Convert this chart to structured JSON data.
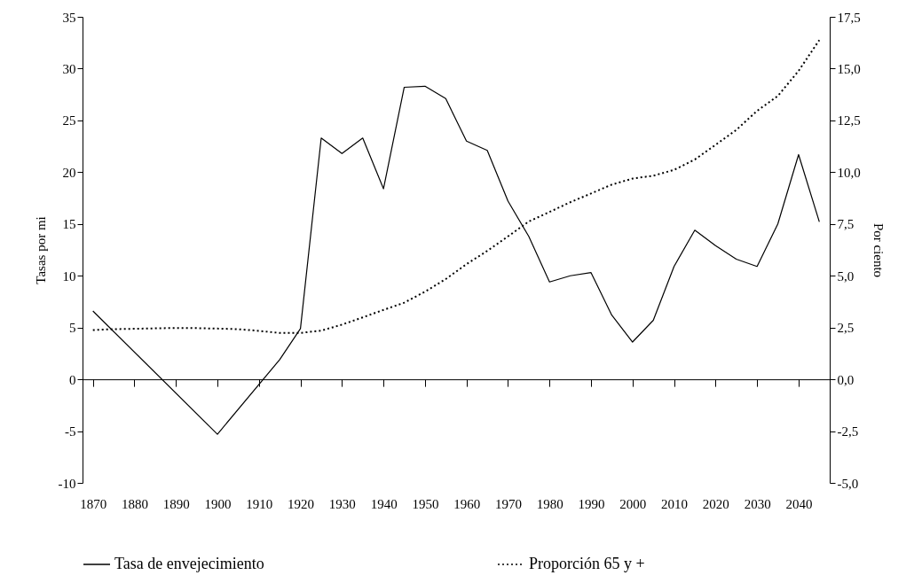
{
  "chart_data": {
    "type": "line",
    "ylabel": "Tasas por mi",
    "y2label": "Por ciento",
    "x": [
      1870,
      1875,
      1880,
      1885,
      1890,
      1895,
      1900,
      1905,
      1910,
      1915,
      1920,
      1925,
      1930,
      1935,
      1940,
      1945,
      1950,
      1955,
      1960,
      1965,
      1970,
      1975,
      1980,
      1985,
      1990,
      1995,
      2000,
      2005,
      2010,
      2015,
      2020,
      2025,
      2030,
      2035,
      2040,
      2045
    ],
    "series": [
      {
        "name": "Tasa de envejecimiento",
        "color": "#000000",
        "line_style": "solid",
        "x": [
          1870,
          1900,
          1915,
          1920,
          1925,
          1930,
          1935,
          1940,
          1945,
          1950,
          1955,
          1960,
          1965,
          1970,
          1975,
          1980,
          1985,
          1990,
          1995,
          2000,
          2005,
          2010,
          2015,
          2020,
          2025,
          2030,
          2035,
          2040,
          2045
        ],
        "values": [
          6.6,
          -5.3,
          1.9,
          4.9,
          23.3,
          21.8,
          23.3,
          18.4,
          28.2,
          28.3,
          27.1,
          23.0,
          22.1,
          17.2,
          13.8,
          9.4,
          10.0,
          10.3,
          6.2,
          3.6,
          5.7,
          10.9,
          14.4,
          12.9,
          11.6,
          10.9,
          15.0,
          21.7,
          15.2
        ]
      },
      {
        "name": "Proporción 65 y +",
        "color": "#000000",
        "line_style": "dotted",
        "axis": "y2",
        "values": [
          2.38,
          2.42,
          2.44,
          2.46,
          2.48,
          2.47,
          2.45,
          2.42,
          2.34,
          2.24,
          2.24,
          2.35,
          2.64,
          2.99,
          3.35,
          3.7,
          4.23,
          4.84,
          5.56,
          6.2,
          6.9,
          7.62,
          8.08,
          8.55,
          8.97,
          9.4,
          9.69,
          9.83,
          10.11,
          10.61,
          11.32,
          12.04,
          12.96,
          13.68,
          14.89,
          16.38
        ]
      }
    ],
    "xlim": [
      1867.5,
      2047.5
    ],
    "xticks": [
      1870,
      1880,
      1890,
      1900,
      1910,
      1920,
      1930,
      1940,
      1950,
      1960,
      1970,
      1980,
      1990,
      2000,
      2010,
      2020,
      2030,
      2040
    ],
    "ylim": [
      -10,
      35
    ],
    "yticks": [
      -10,
      -5,
      0,
      5,
      10,
      15,
      20,
      25,
      30,
      35
    ],
    "y2lim": [
      -5,
      17.5
    ],
    "y2ticks": [
      {
        "value": -5,
        "label": "-5,0"
      },
      {
        "value": -2.5,
        "label": "-2,5"
      },
      {
        "value": 0,
        "label": "0,0"
      },
      {
        "value": 2.5,
        "label": "2,5"
      },
      {
        "value": 5,
        "label": "5,0"
      },
      {
        "value": 7.5,
        "label": "7,5"
      },
      {
        "value": 10,
        "label": "10,0"
      },
      {
        "value": 12.5,
        "label": "12,5"
      },
      {
        "value": 15,
        "label": "15,0"
      },
      {
        "value": 17.5,
        "label": "17,5"
      }
    ],
    "legend": "bottom",
    "marker": "none"
  }
}
